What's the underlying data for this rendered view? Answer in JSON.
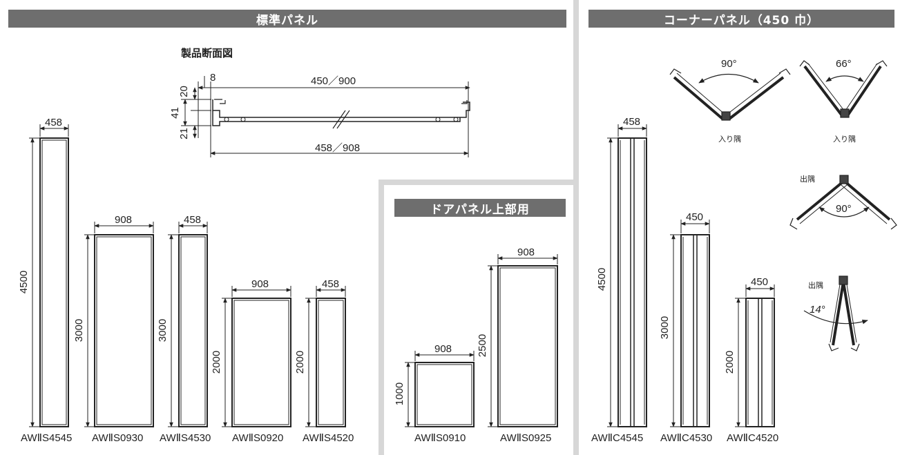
{
  "sections": {
    "standard": {
      "title": "標準パネル"
    },
    "door": {
      "title": "ドアパネル上部用"
    },
    "corner": {
      "title": "コーナーパネル（450 巾）"
    }
  },
  "cross_section": {
    "title": "製品断面図",
    "dims": {
      "top": "450／900",
      "bottom": "458／908",
      "small_8": "8",
      "v20": "20",
      "v41": "41",
      "v21": "21"
    }
  },
  "standard_panels": [
    {
      "model": "AWⅡS4545",
      "width": "458",
      "height": "4500"
    },
    {
      "model": "AWⅡS0930",
      "width": "908",
      "height": "3000"
    },
    {
      "model": "AWⅡS4530",
      "width": "458",
      "height": "3000"
    },
    {
      "model": "AWⅡS0920",
      "width": "908",
      "height": "2000"
    },
    {
      "model": "AWⅡS4520",
      "width": "458",
      "height": "2000"
    }
  ],
  "door_panels": [
    {
      "model": "AWⅡS0910",
      "width": "908",
      "height": "1000"
    },
    {
      "model": "AWⅡS0925",
      "width": "908",
      "height": "2500"
    }
  ],
  "corner_panels": [
    {
      "model": "AWⅡC4545",
      "width": "458",
      "height": "4500"
    },
    {
      "model": "AWⅡC4530",
      "width": "450",
      "height": "3000"
    },
    {
      "model": "AWⅡC4520",
      "width": "450",
      "height": "2000"
    }
  ],
  "corner_angles": {
    "inner1": {
      "label": "入り隅",
      "angle": "90°"
    },
    "inner2": {
      "label": "入り隅",
      "angle": "66°"
    },
    "outer1": {
      "label": "出隅",
      "angle": "90°"
    },
    "outer2": {
      "label": "出隅",
      "angle": "14°"
    }
  }
}
